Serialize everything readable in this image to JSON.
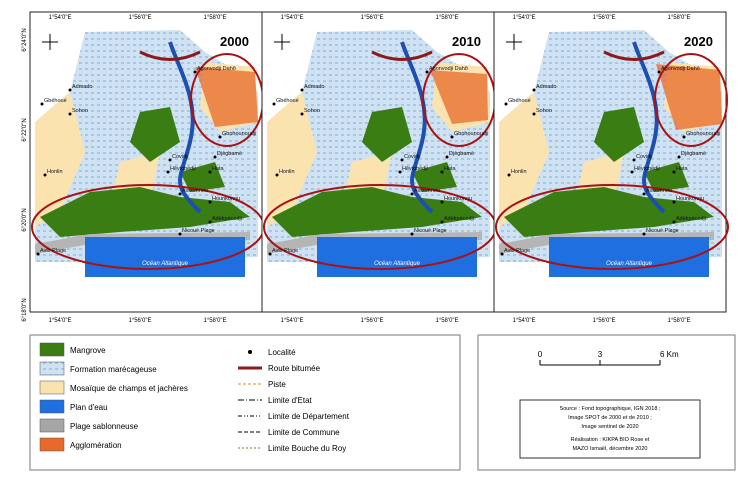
{
  "panels": [
    {
      "year": "2000"
    },
    {
      "year": "2010"
    },
    {
      "year": "2020"
    }
  ],
  "lon_labels": [
    "1°54'0\"E",
    "1°56'0\"E",
    "1°58'0\"E"
  ],
  "lat_labels": [
    "6°24'0\"N",
    "6°22'0\"N",
    "6°20'0\"N",
    "6°18'0\"N"
  ],
  "places": [
    "Agonvodji Dahô",
    "Gbéhoué",
    "Admado",
    "Sohon",
    "Gbohounoudji",
    "Djègbamè",
    "Covidji",
    "Hêvigbédji",
    "Hata",
    "Honlin",
    "Hounkonou",
    "Avinonnou",
    "Adékpécodji",
    "Nicoué Plage",
    "Avlo Plage"
  ],
  "ocean": "Océan Atlantique",
  "legend": {
    "land_cover": [
      "Mangrove",
      "Formation marécageuse",
      "Mosaïque de champs et jachères",
      "Plan d'eau",
      "Plage sablonneuse",
      "Agglomération"
    ],
    "lines": [
      "Localité",
      "Route bitumée",
      "Piste",
      "Limite d'Etat",
      "Limite de Département",
      "Limite de Commune",
      "Limite Bouche du Roy"
    ]
  },
  "scale": {
    "ticks": [
      "0",
      "3",
      "6 Km"
    ]
  },
  "source": [
    "Source : Fond topographique, IGN 2018 ;",
    "Image SPOT de 2000 et de 2010 ;",
    "Image sentinel de 2020",
    "Réalisation : KIKPA BIO Rose et",
    "MAZO Ismaël, décembre 2020"
  ]
}
